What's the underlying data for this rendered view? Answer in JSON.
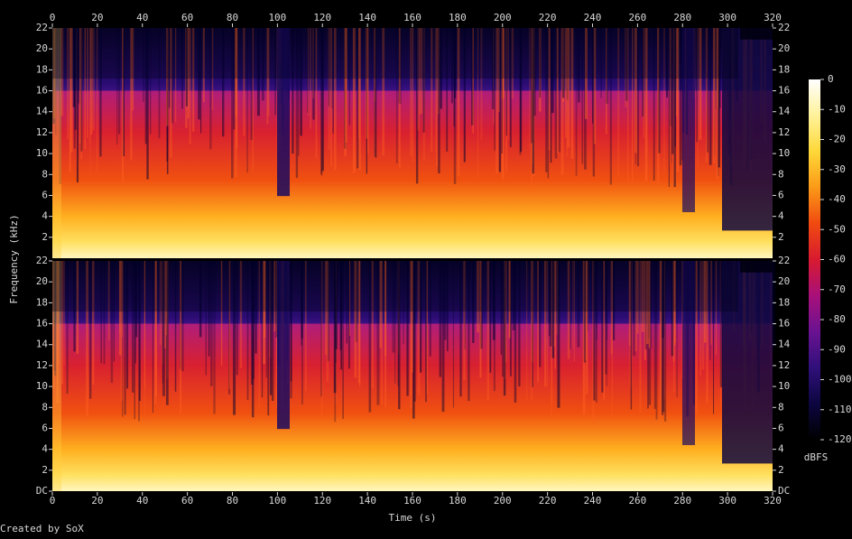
{
  "chart_data": {
    "type": "spectrogram",
    "xlabel": "Time (s)",
    "ylabel": "Frequency (kHz)",
    "credit": "Created by SoX",
    "xlim": [
      0,
      320
    ],
    "xticks": [
      0,
      20,
      40,
      60,
      80,
      100,
      120,
      140,
      160,
      180,
      200,
      220,
      240,
      260,
      280,
      300,
      320
    ],
    "channels": [
      {
        "ylim": [
          0,
          22
        ],
        "yticks": [
          2,
          4,
          6,
          8,
          10,
          12,
          14,
          16,
          18,
          20,
          22
        ]
      },
      {
        "ylim": [
          0,
          22
        ],
        "yticks": [
          {
            "value": 0,
            "label": "DC"
          },
          2,
          4,
          6,
          8,
          10,
          12,
          14,
          16,
          18,
          20,
          22
        ]
      }
    ],
    "colorbar": {
      "label": "dBFS",
      "lim": [
        -120,
        0
      ],
      "ticks": [
        0,
        -10,
        -20,
        -30,
        -40,
        -50,
        -60,
        -70,
        -80,
        -90,
        -100,
        -110,
        -120
      ],
      "colormap": [
        "#000000",
        "#0c0640",
        "#30107a",
        "#6a1292",
        "#a8107a",
        "#d81a30",
        "#f04a10",
        "#fb9a18",
        "#ffd838",
        "#fff29a",
        "#ffffff"
      ]
    }
  }
}
